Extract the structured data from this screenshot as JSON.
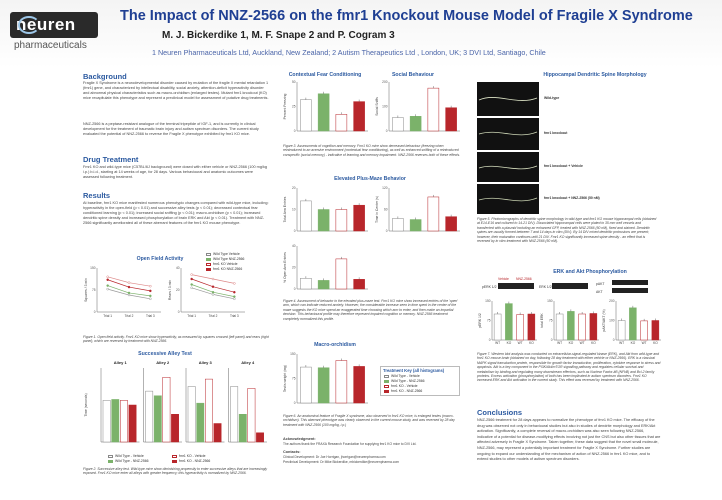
{
  "header": {
    "logo": "neuren",
    "logo_sub": "pharmaceuticals",
    "title": "The Impact of NNZ-2566 on the fmr1 Knockout Mouse Model of Fragile X Syndrome",
    "authors": "M. J. Bickerdike 1, M. F. Snape 2 and P. Cogram 3",
    "affiliations": "1 Neuren Pharmaceuticals Ltd, Auckland, New Zealand;  2 Autism Therapeutics Ltd , London, UK;  3 DVI Ltd, Santiago, Chile"
  },
  "sections": {
    "background_h": "Background",
    "background_p1": "Fragile X Syndrome is a neurodevelopmental disorder caused by mutation of the fragile X mental retardation 1 (fmr1) gene, and characterized by intellectual disability, social anxiety, attention-deficit hyperactivity disorder and abnormal physical characteristics such as macro-orchidism (enlarged testes). Mutant fmr1 knockout (KO) mice recapitulate this phenotype and represent a preclinical model for assessment of putative drug treatments.",
    "background_p2": "NNZ-2566 is a peptase-resistant analogue of the terminal tripeptide of IGF-1, and is currently in clinical development for the treatment of traumatic brain injury and autism spectrum disorders. The current study evaluated the potential of NNZ-2566 to reverse the Fragile X phenotype exhibited by fmr1 KO mice.",
    "drug_h": "Drug Treatment",
    "drug_p": "Fmr1 KO and wild-type mice (C57BL/6J background) were dosed with either vehicle or NNZ-2566 (100 mg/kg i.p.) b.i.d., starting at 14 weeks of age, for 28 days. Various behavioural and anatomic outcomes were assessed following treatment.",
    "results_h": "Results",
    "results_p": "At baseline, fmr1 KO mice manifested numerous phenotypic changes compared with wild-type mice, including: hyperactivity in the open-field (p < 0.01) and successive alley tests (p < 0.01); decreased contextual fear conditioned learning (p < 0.01); increased social sniffing (p < 0.01); macro-orchidism (p < 0.01); increased dendritic spine density and increased phosphorylation of brain ERK and Akt (p < 0.01). Treatment with NNZ-2566 significantly ameliorated all of these aberrant features of the fmr1 KO mouse phenotype.",
    "conclusions_h": "Conclusions",
    "conclusions_p": "NNZ-2566 treatment for 28 days appears to normalize the phenotype of fmr1 KO mice. The efficacy of the drug was observed not only in behavioural studies but also in studies of dendrite morphology and ERK/Akt activation. Significantly, a complete reversal of macro-orchidism was also seen following NNZ-2566, indicative of a potential for disease-modifying effects involving not just the CNS but also other tissues that are affected adversely in Fragile X Syndrome. Taken together, these data suggest that the novel small molecule, NNZ-2566, may represent a potentially important treatment for Fragile X Syndrome. Further studies are ongoing to expand our understanding of the mechanism of action of NNZ-2566 in fmr1 KO mice, and to extend studies to other models of autism spectrum disorders."
  },
  "figures": {
    "open_field_title": "Open Field Activity",
    "open_field_cap": "Figure 1. Open field activity. Fmr1 KO mice show hyperactivity, as measured by squares crossed (left panel) and rears (right panel), which are reversed by treatment with NNZ-2566.",
    "successive_title": "Successive Alley Test",
    "successive_cap": "Figure 2. Successive alley test. Wild-type mice show diminishing propensity to enter successive alleys that are increasingly exposed. Fmr1 KO mice enter all alleys with greater frequency; this hyperactivity is normalized by NNZ-2566.",
    "alley_labels": [
      "Alley 1",
      "Alley 2",
      "Alley 3",
      "Alley 4"
    ],
    "fear_title": "Contextual Fear Conditioning",
    "social_title": "Social Behaviour",
    "fig3_cap": "Figure 3. Assessments of cognition and memory. Fmr1 KO mice show decreased behaviour (freezing when reintroduced to an aversive environment (contextual fear conditioning), as well as enhanced sniffing of a reintroduced conspecific (social memory) - indicative of learning and memory impairment. NNZ-2566 reverses both of these effects.",
    "epm_title": "Elevated Plus-Maze Behavior",
    "fig4_cap": "Figure 4. Assessment of behavior in the elevated plus-maze test. Fmr1 KO mice show increased entries of the 'open' arm, which can indicate reduced anxiety. However, the considerable increase seen in time spent in the center of the maze suggests the KO mice spend an exaggerated time choosing which arm to enter, and then make an impartial decision. This behavioural profile may therefore represent impaired cognition or memory. NNZ-2566 treatment completely normalized this profile.",
    "macro_title": "Macro-orchidism",
    "fig6_cap": "Figure 6. An anatomical feature of Fragile X syndrome, also observed in fmr1 KO mice, is enlarged testes (macro-orchidism). This aberrant phenotype was clearly observed in the current mouse study, and was reversed by 28 day treatment with NNZ-2566 (100 mg/kg, i.p.)",
    "hipp_title": "Hippocampal Dendritic Spine Morphology",
    "hipp_labels": [
      "Wild-type",
      "fmr1 knockout",
      "fmr1 knockout + Vehicle",
      "fmr1 knockout + NNZ-2566 (50 nM)"
    ],
    "fig5_cap": "Figure 5. Photomicrographs of dendritic spine morphology in wild-type and fmr1 KO mouse hippocampal cells (obtained at E14-E16 and cultured to 14-21 DIV). Dissociated hippocampal cells were plated in 35 mm well vessels and transfected with a plasmid including an enhanced GFP, treated with NNZ-2566 (50 nM), fixed and stained. Dendritic spines are usually formed between 7 and 14 days in vitro (DIV). By 14 DIV mixed dendritic protrusions are present; however, their maturation continues until 21 DIV. Fmr1 KO significantly increased spine density - an effect that is reversed by in vitro treatment with NNZ-2566 (50 nM).",
    "erk_title": "ERK and Akt Phosphorylation",
    "fig7_cap": "Figure 7. Western blot analysis was conducted on extracellular-signal-regulated kinase (ERK), and Akt from wild-type and fmr1 KO mouse brain (obtained on day, following 28 day treatment with either vehicle or NNZ-2566). ERK is a classical MAPK signal transduction protein, responsible for growth factor transduction, proliferation, cytokine response to stress and apoptosis. Akt is a key component in the PI3K/Akt/mTOR signalling pathway and regulates cellular survival and metabolism by binding and regulating many downstream effectors, such as Nuclear Factor-kB (NFkB) and Bcl-2 family proteins. Excess activation (phosphorylation) of both has been implicated in autism spectrum disorders. Fmr1 KO increased ERK and Akt activation in the current study. This effect was reversed by treatment with NNZ-2566.",
    "blot_labels": [
      "pERK 1/2",
      "ERK 1/2",
      "pAKT",
      "AKT"
    ],
    "blot_heads": [
      "Vehicle",
      "NNZ-2566"
    ]
  },
  "legend": {
    "title": "Treatment Key (all histograms)",
    "items": [
      "Wild Type - Vehicle",
      "Wild Type - NNZ-2566",
      "fmr1 KO - Vehicle",
      "fmr1 KO - NNZ-2566"
    ],
    "line_items": [
      "Wild Type Vehicle",
      "Wild Type NNZ-2566",
      "fmr1 KO Vehicle",
      "fmr1 KO NNZ-2566"
    ],
    "colors": [
      "#ffffff",
      "#7bb26a",
      "#ffffff",
      "#b8262b"
    ]
  },
  "ack": {
    "h": "Acknowledgment:",
    "p": "The authors thank the FRAXA Research Foundation for supplying fmr1 KO mice to DVI Ltd.",
    "contacts_h": "Contacts:",
    "c1": "Clinical Development:    Dr Joe Horrigan,      jhorrigan@neurenpharma.com",
    "c2": "Preclinical Development:  Dr Mike Bickerdike,  mbickerdike@neurenpharma.com"
  },
  "chart_data": [
    {
      "type": "line",
      "title": "Open Field Activity",
      "panel": "squares crossed",
      "categories": [
        "Trial 1",
        "Trial 2",
        "Trial 3"
      ],
      "ylabel": "Squares / 3 min",
      "ylim": [
        0,
        150
      ],
      "series": [
        {
          "name": "Wild Type Vehicle",
          "values": [
            78,
            58,
            45
          ]
        },
        {
          "name": "Wild Type NNZ-2566",
          "values": [
            90,
            65,
            55
          ]
        },
        {
          "name": "fmr1 KO Vehicle",
          "values": [
            120,
            100,
            88
          ]
        },
        {
          "name": "fmr1 KO NNZ-2566",
          "values": [
            110,
            85,
            72
          ]
        }
      ]
    },
    {
      "type": "line",
      "title": "Open Field Activity",
      "panel": "rears",
      "categories": [
        "Trial 1",
        "Trial 2",
        "Trial 3"
      ],
      "ylabel": "Rears / 3 min",
      "ylim": [
        0,
        40
      ],
      "series": [
        {
          "name": "Wild Type Vehicle",
          "values": [
            22,
            16,
            12
          ]
        },
        {
          "name": "Wild Type NNZ-2566",
          "values": [
            25,
            18,
            14
          ]
        },
        {
          "name": "fmr1 KO Vehicle",
          "values": [
            34,
            30,
            26
          ]
        },
        {
          "name": "fmr1 KO NNZ-2566",
          "values": [
            30,
            23,
            18
          ]
        }
      ]
    },
    {
      "type": "bar",
      "title": "Successive Alley Test",
      "alleys": [
        "Alley 1",
        "Alley 2",
        "Alley 3",
        "Alley 4"
      ],
      "ylabel": "Time (seconds)",
      "series": [
        {
          "name": "Wild Type - Vehicle",
          "values": [
            45,
            55,
            60,
            60
          ]
        },
        {
          "name": "Wild Type - NNZ-2566",
          "values": [
            46,
            50,
            42,
            30
          ]
        },
        {
          "name": "fmr1 KO - Vehicle",
          "values": [
            45,
            70,
            68,
            58
          ]
        },
        {
          "name": "fmr1 KO - NNZ-2566",
          "values": [
            40,
            30,
            20,
            10
          ]
        }
      ]
    },
    {
      "type": "bar",
      "title": "Contextual Fear Conditioning",
      "ylabel": "Percent Freezing",
      "ylim": [
        0,
        50
      ],
      "values": [
        32,
        38,
        17,
        30
      ]
    },
    {
      "type": "bar",
      "title": "Social Behaviour",
      "ylabel": "Social Sniffs",
      "ylim": [
        0,
        200
      ],
      "values": [
        55,
        60,
        175,
        95
      ]
    },
    {
      "type": "bar",
      "title": "Elevated Plus-Maze Behavior",
      "panel": "total arm entries",
      "ylabel": "Total Arm Entries",
      "ylim": [
        0,
        20
      ],
      "values": [
        14,
        10,
        10,
        12
      ]
    },
    {
      "type": "bar",
      "title": "Elevated Plus-Maze Behavior",
      "panel": "time in center",
      "ylabel": "Time in Center (s)",
      "ylim": [
        0,
        120
      ],
      "values": [
        35,
        32,
        95,
        40
      ]
    },
    {
      "type": "bar",
      "title": "Elevated Plus-Maze Behavior",
      "panel": "open arm entries",
      "ylabel": "% Open Arm Entries",
      "ylim": [
        0,
        40
      ],
      "values": [
        10,
        8,
        28,
        9
      ]
    },
    {
      "type": "bar",
      "title": "Macro-orchidism",
      "ylabel": "Testis weight (mg)",
      "ylim": [
        0,
        150
      ],
      "values": [
        110,
        108,
        130,
        112
      ]
    },
    {
      "type": "bar",
      "title": "ERK and Akt Phosphorylation",
      "panel": "pERK 1/2",
      "ylabel": "pERK 1/2",
      "ylim": [
        0,
        150
      ],
      "categories": [
        "WT",
        "KO",
        "WT",
        "KO"
      ],
      "values": [
        100,
        140,
        98,
        100
      ]
    },
    {
      "type": "bar",
      "title": "ERK and Akt Phosphorylation",
      "panel": "total ERK",
      "ylabel": "total ERK",
      "ylim": [
        0,
        150
      ],
      "categories": [
        "WT",
        "KO",
        "WT",
        "KO"
      ],
      "values": [
        100,
        110,
        100,
        102
      ]
    },
    {
      "type": "bar",
      "title": "ERK and Akt Phosphorylation",
      "panel": "pAKT",
      "ylabel": "pAKT/AKT (%)",
      "ylim": [
        0,
        200
      ],
      "categories": [
        "WT",
        "KO",
        "WT",
        "KO"
      ],
      "values": [
        100,
        165,
        98,
        100
      ]
    }
  ]
}
